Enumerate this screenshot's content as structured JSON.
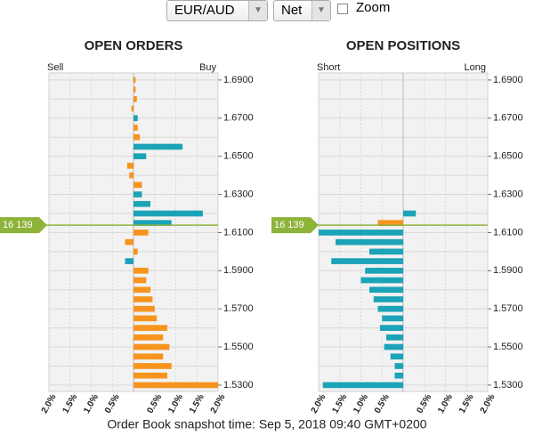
{
  "controls": {
    "pair": "EUR/AUD",
    "mode": "Net",
    "zoom": "Zoom"
  },
  "chart_data": [
    {
      "type": "bar",
      "orientation": "horizontal",
      "title": "OPEN ORDERS",
      "left_label": "Sell",
      "right_label": "Buy",
      "y": [
        1.53,
        1.535,
        1.54,
        1.545,
        1.55,
        1.555,
        1.56,
        1.565,
        1.57,
        1.575,
        1.58,
        1.585,
        1.59,
        1.595,
        1.6,
        1.605,
        1.61,
        1.615,
        1.62,
        1.625,
        1.63,
        1.635,
        1.64,
        1.645,
        1.65,
        1.655,
        1.66,
        1.665,
        1.67,
        1.675,
        1.68,
        1.685,
        1.69
      ],
      "values": [
        2.0,
        0.8,
        0.9,
        0.7,
        0.85,
        0.7,
        0.8,
        0.55,
        0.5,
        0.45,
        0.4,
        0.3,
        0.35,
        -0.2,
        0.1,
        -0.2,
        0.35,
        0.9,
        1.64,
        0.4,
        0.2,
        0.2,
        -0.1,
        -0.15,
        0.3,
        1.16,
        0.15,
        0.1,
        0.1,
        -0.05,
        0.08,
        0.05,
        0.05
      ],
      "colors": [
        "#f7941d",
        "#f7941d",
        "#f7941d",
        "#f7941d",
        "#f7941d",
        "#f7941d",
        "#f7941d",
        "#f7941d",
        "#f7941d",
        "#f7941d",
        "#f7941d",
        "#f7941d",
        "#f7941d",
        "#1ba3b8",
        "#f7941d",
        "#f7941d",
        "#f7941d",
        "#1ba3b8",
        "#1ba3b8",
        "#1ba3b8",
        "#1ba3b8",
        "#f7941d",
        "#f7941d",
        "#f7941d",
        "#1ba3b8",
        "#1ba3b8",
        "#f7941d",
        "#f7941d",
        "#1ba3b8",
        "#f7941d",
        "#f7941d",
        "#f7941d",
        "#f7941d"
      ],
      "xlim": [
        -2,
        2
      ],
      "xticks": [
        {
          "value": -2,
          "label": "2.0%"
        },
        {
          "value": -1.5,
          "label": "1.5%"
        },
        {
          "value": -1,
          "label": "1.0%"
        },
        {
          "value": -0.5,
          "label": "0.5%"
        },
        {
          "value": 0.5,
          "label": "0.5%"
        },
        {
          "value": 1,
          "label": "1.0%"
        },
        {
          "value": 1.5,
          "label": "1.5%"
        },
        {
          "value": 2,
          "label": "2.0%"
        }
      ],
      "ylim": [
        1.5267,
        1.6937
      ],
      "yticks": [
        {
          "value": 1.53,
          "label": "1.5300"
        },
        {
          "value": 1.55,
          "label": "1.5500"
        },
        {
          "value": 1.57,
          "label": "1.5700"
        },
        {
          "value": 1.59,
          "label": "1.5900"
        },
        {
          "value": 1.61,
          "label": "1.6100"
        },
        {
          "value": 1.63,
          "label": "1.6300"
        },
        {
          "value": 1.65,
          "label": "1.6500"
        },
        {
          "value": 1.67,
          "label": "1.6700"
        },
        {
          "value": 1.69,
          "label": "1.6900"
        }
      ],
      "yminorticks": [
        1.54,
        1.56,
        1.58,
        1.6,
        1.62,
        1.64,
        1.66,
        1.68
      ],
      "grid": true,
      "price": {
        "value": 1.6139,
        "label": "16 139"
      },
      "price_color": "#8db33a"
    },
    {
      "type": "bar",
      "orientation": "horizontal",
      "title": "OPEN POSITIONS",
      "left_label": "Short",
      "right_label": "Long",
      "y": [
        1.53,
        1.535,
        1.54,
        1.545,
        1.55,
        1.555,
        1.56,
        1.565,
        1.57,
        1.575,
        1.58,
        1.585,
        1.59,
        1.595,
        1.6,
        1.605,
        1.61,
        1.615,
        1.62,
        1.625,
        1.63,
        1.635,
        1.64,
        1.645,
        1.65,
        1.655,
        1.66,
        1.665,
        1.67,
        1.675,
        1.68,
        1.685,
        1.69
      ],
      "values": [
        -1.9,
        -0.2,
        -0.2,
        -0.3,
        -0.45,
        -0.4,
        -0.55,
        -0.5,
        -0.6,
        -0.7,
        -0.8,
        -1.0,
        -0.9,
        -1.7,
        -0.8,
        -1.6,
        -2.0,
        -0.6,
        0.3,
        null,
        null,
        null,
        null,
        null,
        null,
        null,
        null,
        null,
        null,
        null,
        null,
        null,
        null
      ],
      "colors": [
        "#1ba3b8",
        "#1ba3b8",
        "#1ba3b8",
        "#1ba3b8",
        "#1ba3b8",
        "#1ba3b8",
        "#1ba3b8",
        "#1ba3b8",
        "#1ba3b8",
        "#1ba3b8",
        "#1ba3b8",
        "#1ba3b8",
        "#1ba3b8",
        "#1ba3b8",
        "#1ba3b8",
        "#1ba3b8",
        "#1ba3b8",
        "#f7941d",
        "#1ba3b8",
        null,
        null,
        null,
        null,
        null,
        null,
        null,
        null,
        null,
        null,
        null,
        null,
        null,
        null
      ],
      "xlim": [
        -2,
        2
      ],
      "xticks": [
        {
          "value": -2,
          "label": "2.0%"
        },
        {
          "value": -1.5,
          "label": "1.5%"
        },
        {
          "value": -1,
          "label": "1.0%"
        },
        {
          "value": -0.5,
          "label": "0.5%"
        },
        {
          "value": 0.5,
          "label": "0.5%"
        },
        {
          "value": 1,
          "label": "1.0%"
        },
        {
          "value": 1.5,
          "label": "1.5%"
        },
        {
          "value": 2,
          "label": "2.0%"
        }
      ],
      "ylim": [
        1.5267,
        1.6937
      ],
      "yticks": [
        {
          "value": 1.53,
          "label": "1.5300"
        },
        {
          "value": 1.55,
          "label": "1.5500"
        },
        {
          "value": 1.57,
          "label": "1.5700"
        },
        {
          "value": 1.59,
          "label": "1.5900"
        },
        {
          "value": 1.61,
          "label": "1.6100"
        },
        {
          "value": 1.63,
          "label": "1.6300"
        },
        {
          "value": 1.65,
          "label": "1.6500"
        },
        {
          "value": 1.67,
          "label": "1.6700"
        },
        {
          "value": 1.69,
          "label": "1.6900"
        }
      ],
      "yminorticks": [
        1.54,
        1.56,
        1.58,
        1.6,
        1.62,
        1.64,
        1.66,
        1.68
      ],
      "grid": true,
      "price": {
        "value": 1.6139,
        "label": "16 139"
      },
      "price_color": "#8db33a"
    }
  ],
  "footer": "Order Book snapshot time: Sep 5, 2018 09:40 GMT+0200"
}
